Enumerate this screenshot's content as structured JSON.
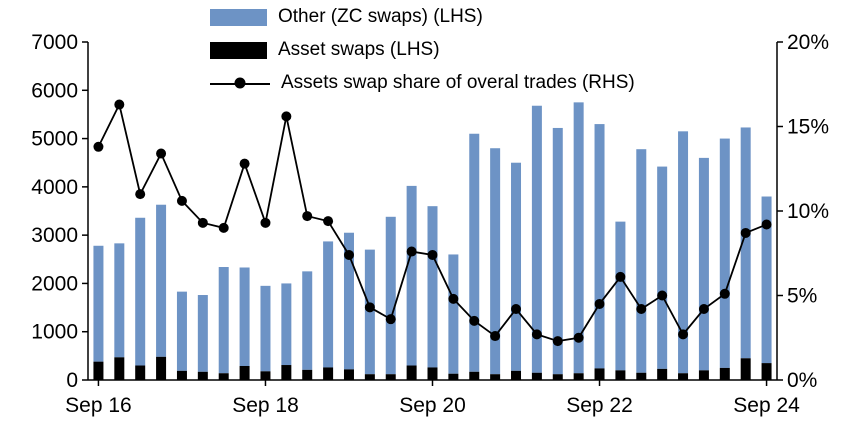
{
  "chart_data": {
    "type": "bar",
    "stacked": true,
    "n_bars": 33,
    "grid": false,
    "legend_position": "top-inside",
    "series": [
      {
        "name": "Other (ZC swaps) (LHS)",
        "type": "bar",
        "axis": "left",
        "color": "#6d93c5",
        "values": [
          2400,
          2360,
          3060,
          3150,
          1640,
          1590,
          2200,
          2040,
          1770,
          1690,
          2040,
          2610,
          2830,
          2580,
          3260,
          3720,
          3340,
          2470,
          4930,
          4680,
          4310,
          5530,
          5100,
          5610,
          5060,
          3080,
          4630,
          4190,
          5010,
          4400,
          4750,
          4780,
          3450
        ]
      },
      {
        "name": "Asset swaps (LHS)",
        "type": "bar",
        "axis": "left",
        "color": "#000000",
        "values": [
          380,
          470,
          300,
          480,
          190,
          170,
          140,
          290,
          180,
          310,
          210,
          260,
          220,
          120,
          120,
          300,
          260,
          130,
          170,
          120,
          190,
          150,
          120,
          140,
          240,
          200,
          150,
          230,
          140,
          200,
          250,
          450,
          350
        ]
      },
      {
        "name": "Assets swap share of overal trades (RHS)",
        "type": "line",
        "axis": "right",
        "color": "#000000",
        "values": [
          13.8,
          16.3,
          11.0,
          13.4,
          10.6,
          9.3,
          9.0,
          12.8,
          9.3,
          15.6,
          9.7,
          9.4,
          7.4,
          4.3,
          3.6,
          7.6,
          7.4,
          4.8,
          3.5,
          2.6,
          4.2,
          2.7,
          2.3,
          2.5,
          4.5,
          6.1,
          4.2,
          5.0,
          2.7,
          4.2,
          5.1,
          8.7,
          9.2
        ]
      }
    ],
    "left_axis": {
      "min": 0,
      "max": 7000,
      "tick_step": 1000,
      "tick_labels": [
        "0",
        "1000",
        "2000",
        "3000",
        "4000",
        "5000",
        "6000",
        "7000"
      ]
    },
    "right_axis": {
      "min": 0,
      "max": 20,
      "tick_values": [
        0,
        5,
        10,
        15,
        20
      ],
      "tick_labels": [
        "0%",
        "5%",
        "10%",
        "15%",
        "20%"
      ]
    },
    "x_axis": {
      "ticks": [
        {
          "label": "Sep 16",
          "index": 0
        },
        {
          "label": "Sep 18",
          "index": 8
        },
        {
          "label": "Sep 20",
          "index": 16
        },
        {
          "label": "Sep 22",
          "index": 24
        },
        {
          "label": "Sep 24",
          "index": 32
        }
      ]
    }
  }
}
